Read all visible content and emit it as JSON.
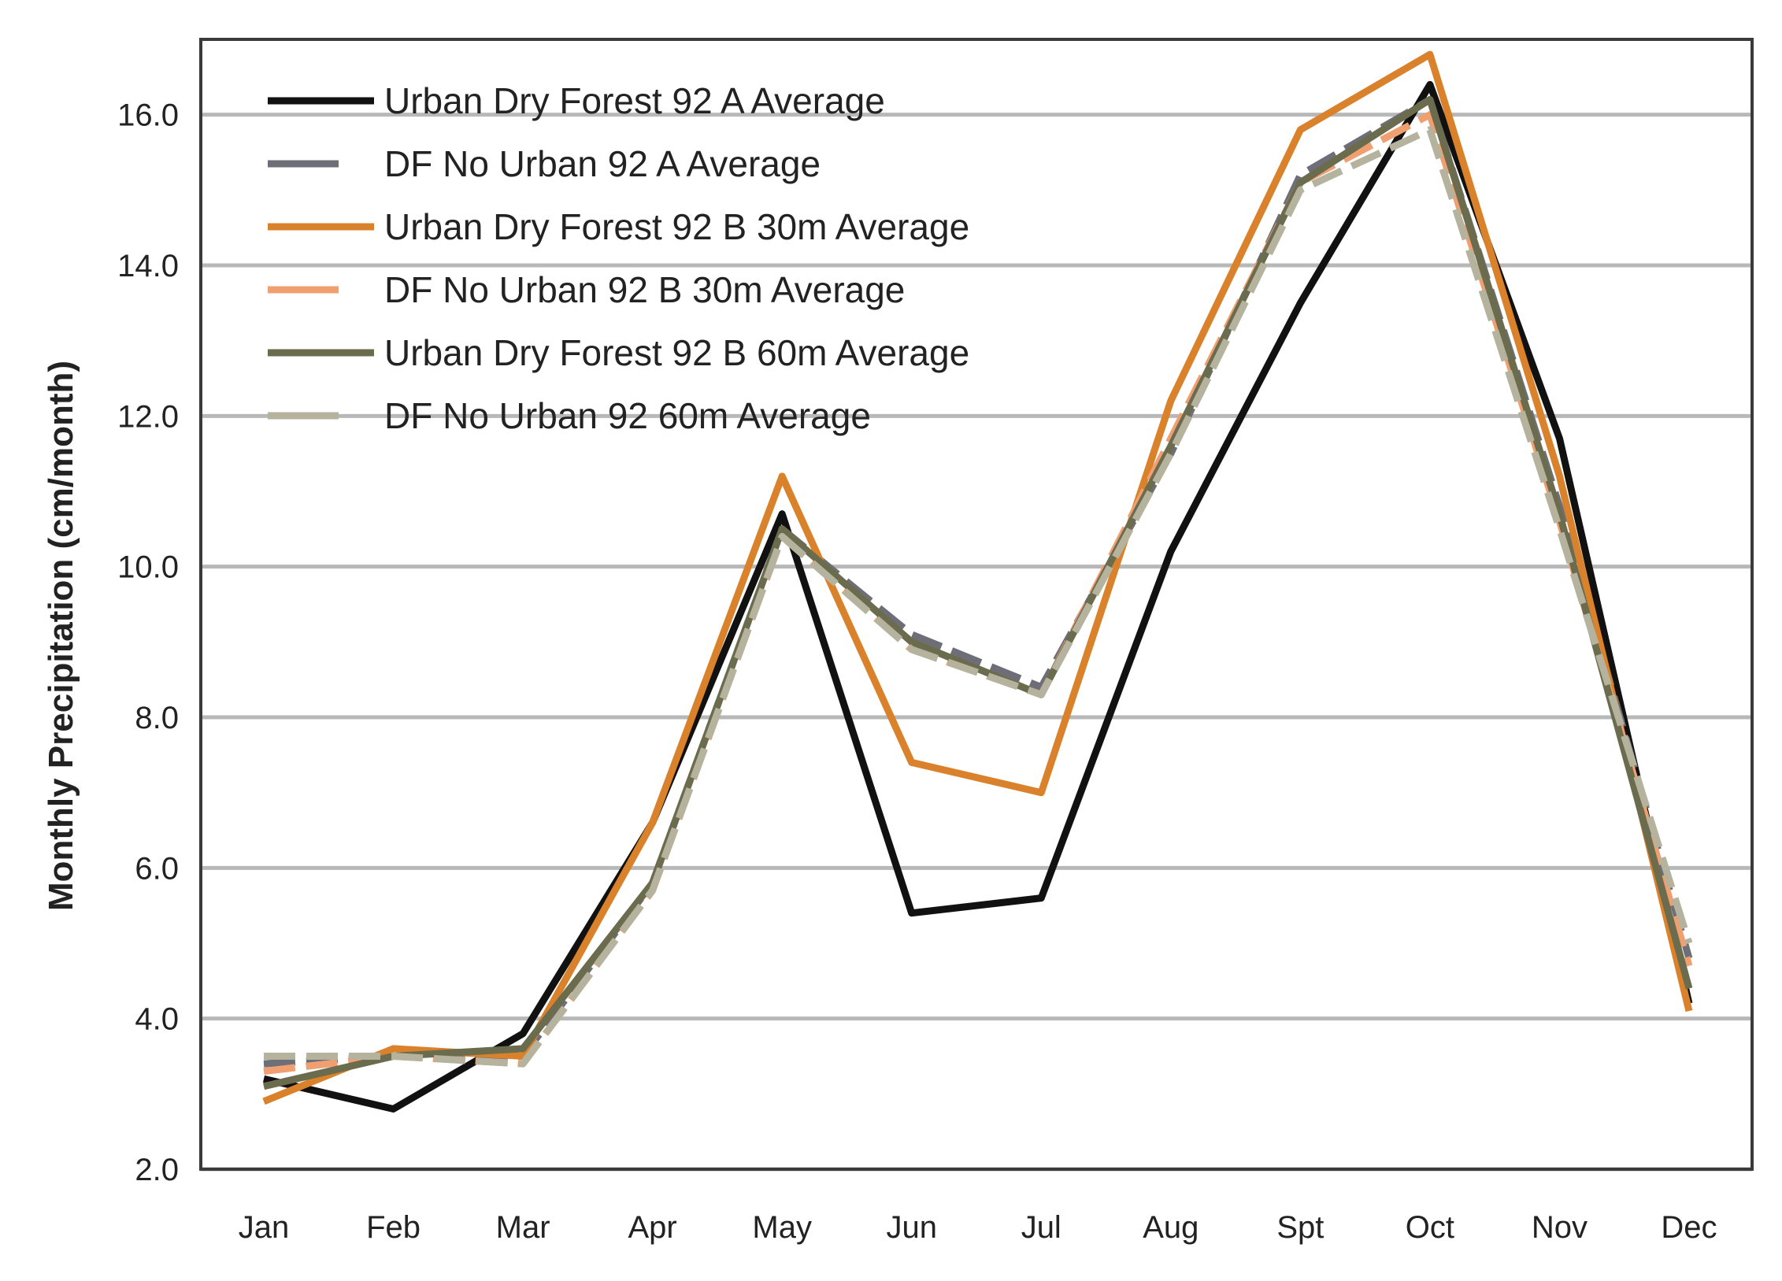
{
  "chart_data": {
    "type": "line",
    "title": "",
    "xlabel": "",
    "ylabel": "Monthly Precipitation (cm/month)",
    "ylim": [
      2.0,
      17.0
    ],
    "yticks": [
      2.0,
      4.0,
      6.0,
      8.0,
      10.0,
      12.0,
      14.0,
      16.0
    ],
    "ytick_labels": [
      "2.0",
      "4.0",
      "6.0",
      "8.0",
      "10.0",
      "12.0",
      "14.0",
      "16.0"
    ],
    "grid": "horizontal",
    "legend_position": "top-left",
    "categories": [
      "Jan",
      "Feb",
      "Mar",
      "Apr",
      "May",
      "Jun",
      "Jul",
      "Aug",
      "Spt",
      "Oct",
      "Nov",
      "Dec"
    ],
    "series": [
      {
        "name": "Urban Dry Forest 92 A Average",
        "color": "#111111",
        "dash": "solid",
        "values": [
          3.2,
          2.8,
          3.8,
          6.6,
          10.7,
          5.4,
          5.6,
          10.2,
          13.5,
          16.4,
          11.7,
          4.2
        ]
      },
      {
        "name": "DF No Urban 92 A Average",
        "color": "#6e6e78",
        "dash": "dashed",
        "values": [
          3.4,
          3.5,
          3.5,
          5.8,
          10.5,
          9.1,
          8.4,
          11.5,
          15.2,
          16.2,
          10.8,
          4.8
        ]
      },
      {
        "name": "Urban Dry Forest 92 B 30m Average",
        "color": "#d9822b",
        "dash": "solid",
        "values": [
          2.9,
          3.6,
          3.5,
          6.6,
          11.2,
          7.4,
          7.0,
          12.2,
          15.8,
          16.8,
          11.2,
          4.1
        ]
      },
      {
        "name": "DF No Urban 92 B 30m Average",
        "color": "#f0a070",
        "dash": "dashed",
        "values": [
          3.3,
          3.5,
          3.4,
          5.7,
          10.4,
          8.9,
          8.3,
          11.7,
          15.1,
          16.0,
          10.6,
          4.7
        ]
      },
      {
        "name": "Urban Dry Forest 92 B 60m Average",
        "color": "#6b6b4e",
        "dash": "solid",
        "values": [
          3.1,
          3.5,
          3.6,
          5.8,
          10.5,
          9.0,
          8.3,
          11.6,
          15.1,
          16.2,
          10.7,
          4.4
        ]
      },
      {
        "name": "DF No Urban 92 60m Average",
        "color": "#b5b39e",
        "dash": "dashed",
        "values": [
          3.5,
          3.5,
          3.4,
          5.7,
          10.4,
          8.9,
          8.3,
          11.5,
          15.0,
          15.8,
          10.5,
          5.0
        ]
      }
    ]
  }
}
